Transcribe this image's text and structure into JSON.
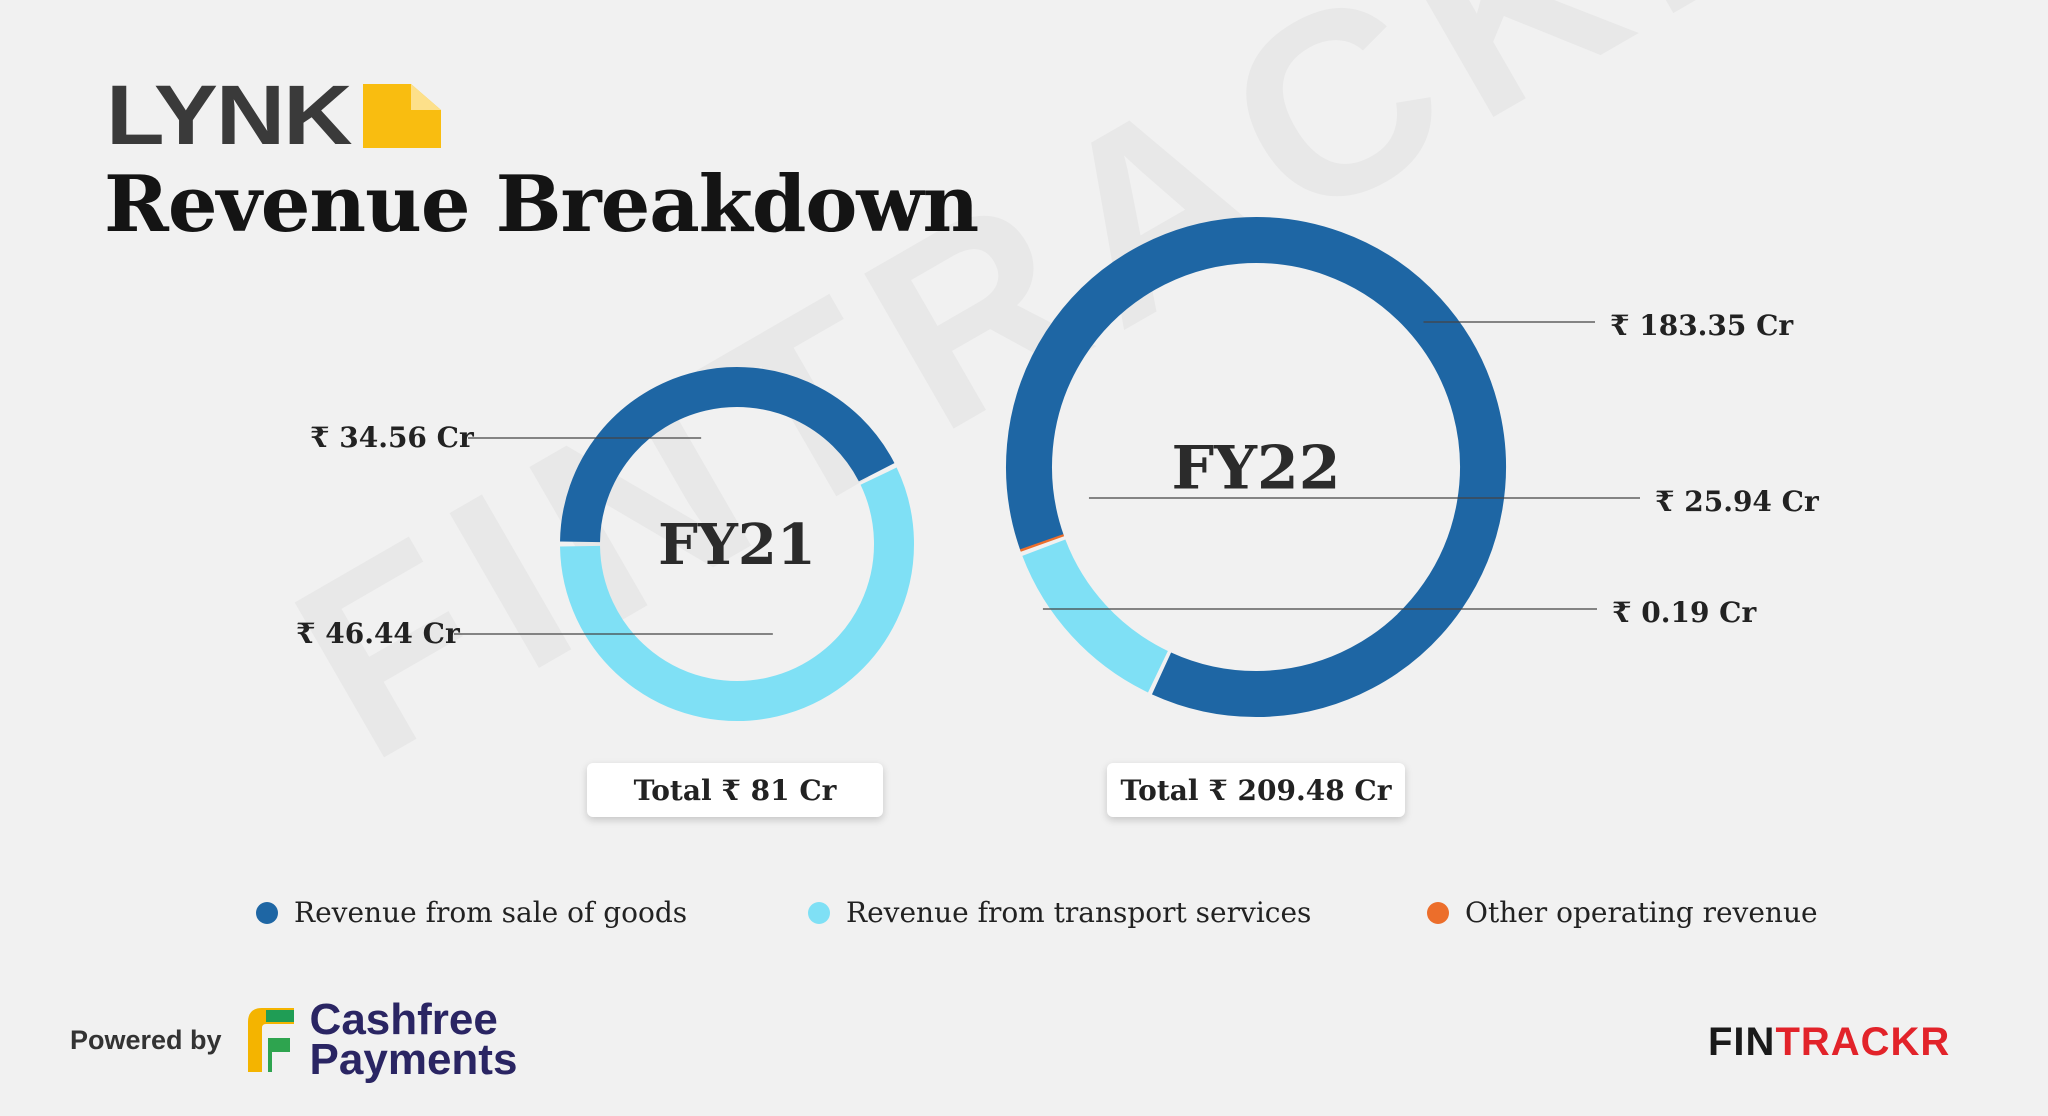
{
  "brand": {
    "logo_text": "LYNK",
    "logo_color": "#f9bd10"
  },
  "title": "Revenue Breakdown",
  "watermark": "FINTRACKR",
  "colors": {
    "goods": "#1e66a4",
    "transport": "#7fe0f5",
    "other": "#ec6e2b"
  },
  "chart_data": [
    {
      "type": "pie",
      "center_label": "FY21",
      "total_label": "Total ₹ 81 Cr",
      "slices": [
        {
          "name": "Revenue from sale of goods",
          "value": 34.56,
          "label": "₹ 34.56 Cr",
          "color": "#1e66a4"
        },
        {
          "name": "Revenue from transport services",
          "value": 46.44,
          "label": "₹ 46.44 Cr",
          "color": "#7fe0f5"
        }
      ]
    },
    {
      "type": "pie",
      "center_label": "FY22",
      "total_label": "Total ₹ 209.48 Cr",
      "slices": [
        {
          "name": "Revenue from sale of goods",
          "value": 183.35,
          "label": "₹ 183.35 Cr",
          "color": "#1e66a4"
        },
        {
          "name": "Revenue from transport services",
          "value": 25.94,
          "label": "₹ 25.94 Cr",
          "color": "#7fe0f5"
        },
        {
          "name": "Other operating revenue",
          "value": 0.19,
          "label": "₹ 0.19 Cr",
          "color": "#ec6e2b"
        }
      ]
    }
  ],
  "legend": [
    {
      "label": "Revenue from sale of goods",
      "color": "#1e66a4"
    },
    {
      "label": "Revenue from transport services",
      "color": "#7fe0f5"
    },
    {
      "label": "Other operating revenue",
      "color": "#ec6e2b"
    }
  ],
  "footer": {
    "powered_by": "Powered by",
    "cashfree_line1": "Cashfree",
    "cashfree_line2": "Payments",
    "fintrackr_dark": "FIN",
    "fintrackr_red": "TRACKR"
  }
}
